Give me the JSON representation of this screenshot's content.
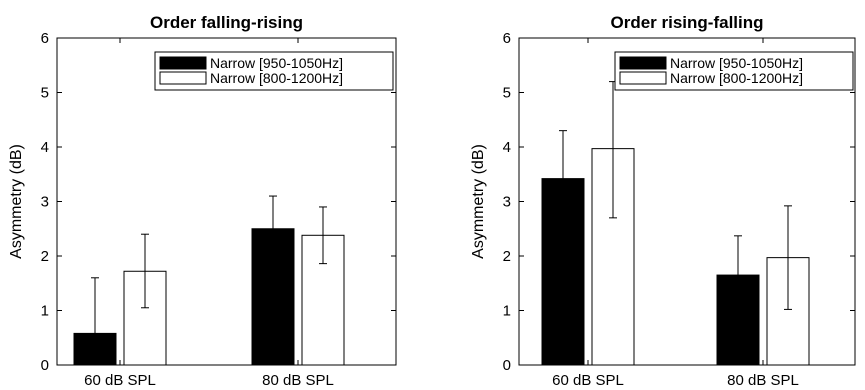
{
  "chart_data": [
    {
      "type": "bar",
      "title": "Order falling-rising",
      "xlabel": "",
      "ylabel": "Asymmetry (dB)",
      "ylim": [
        0,
        6
      ],
      "yticks": [
        "0",
        "1",
        "2",
        "3",
        "4",
        "5",
        "6"
      ],
      "categories": [
        "60 dB SPL",
        "80 dB SPL"
      ],
      "legend_position": "top-right",
      "series": [
        {
          "name": "Narrow [950-1050Hz]",
          "color": "#000000",
          "values": [
            0.58,
            2.5
          ],
          "err_low": [
            0.0,
            1.92
          ],
          "err_high": [
            1.6,
            3.1
          ]
        },
        {
          "name": "Narrow [800-1200Hz]",
          "color": "#ffffff",
          "values": [
            1.72,
            2.38
          ],
          "err_low": [
            1.05,
            1.86
          ],
          "err_high": [
            2.4,
            2.9
          ]
        }
      ]
    },
    {
      "type": "bar",
      "title": "Order rising-falling",
      "xlabel": "",
      "ylabel": "Asymmetry (dB)",
      "ylim": [
        0,
        6
      ],
      "yticks": [
        "0",
        "1",
        "2",
        "3",
        "4",
        "5",
        "6"
      ],
      "categories": [
        "60 dB SPL",
        "80 dB SPL"
      ],
      "legend_position": "top-right",
      "series": [
        {
          "name": "Narrow [950-1050Hz]",
          "color": "#000000",
          "values": [
            3.42,
            1.65
          ],
          "err_low": [
            2.55,
            0.95
          ],
          "err_high": [
            4.3,
            2.37
          ]
        },
        {
          "name": "Narrow [800-1200Hz]",
          "color": "#ffffff",
          "values": [
            3.97,
            1.97
          ],
          "err_low": [
            2.7,
            1.02
          ],
          "err_high": [
            5.2,
            2.92
          ]
        }
      ]
    }
  ]
}
